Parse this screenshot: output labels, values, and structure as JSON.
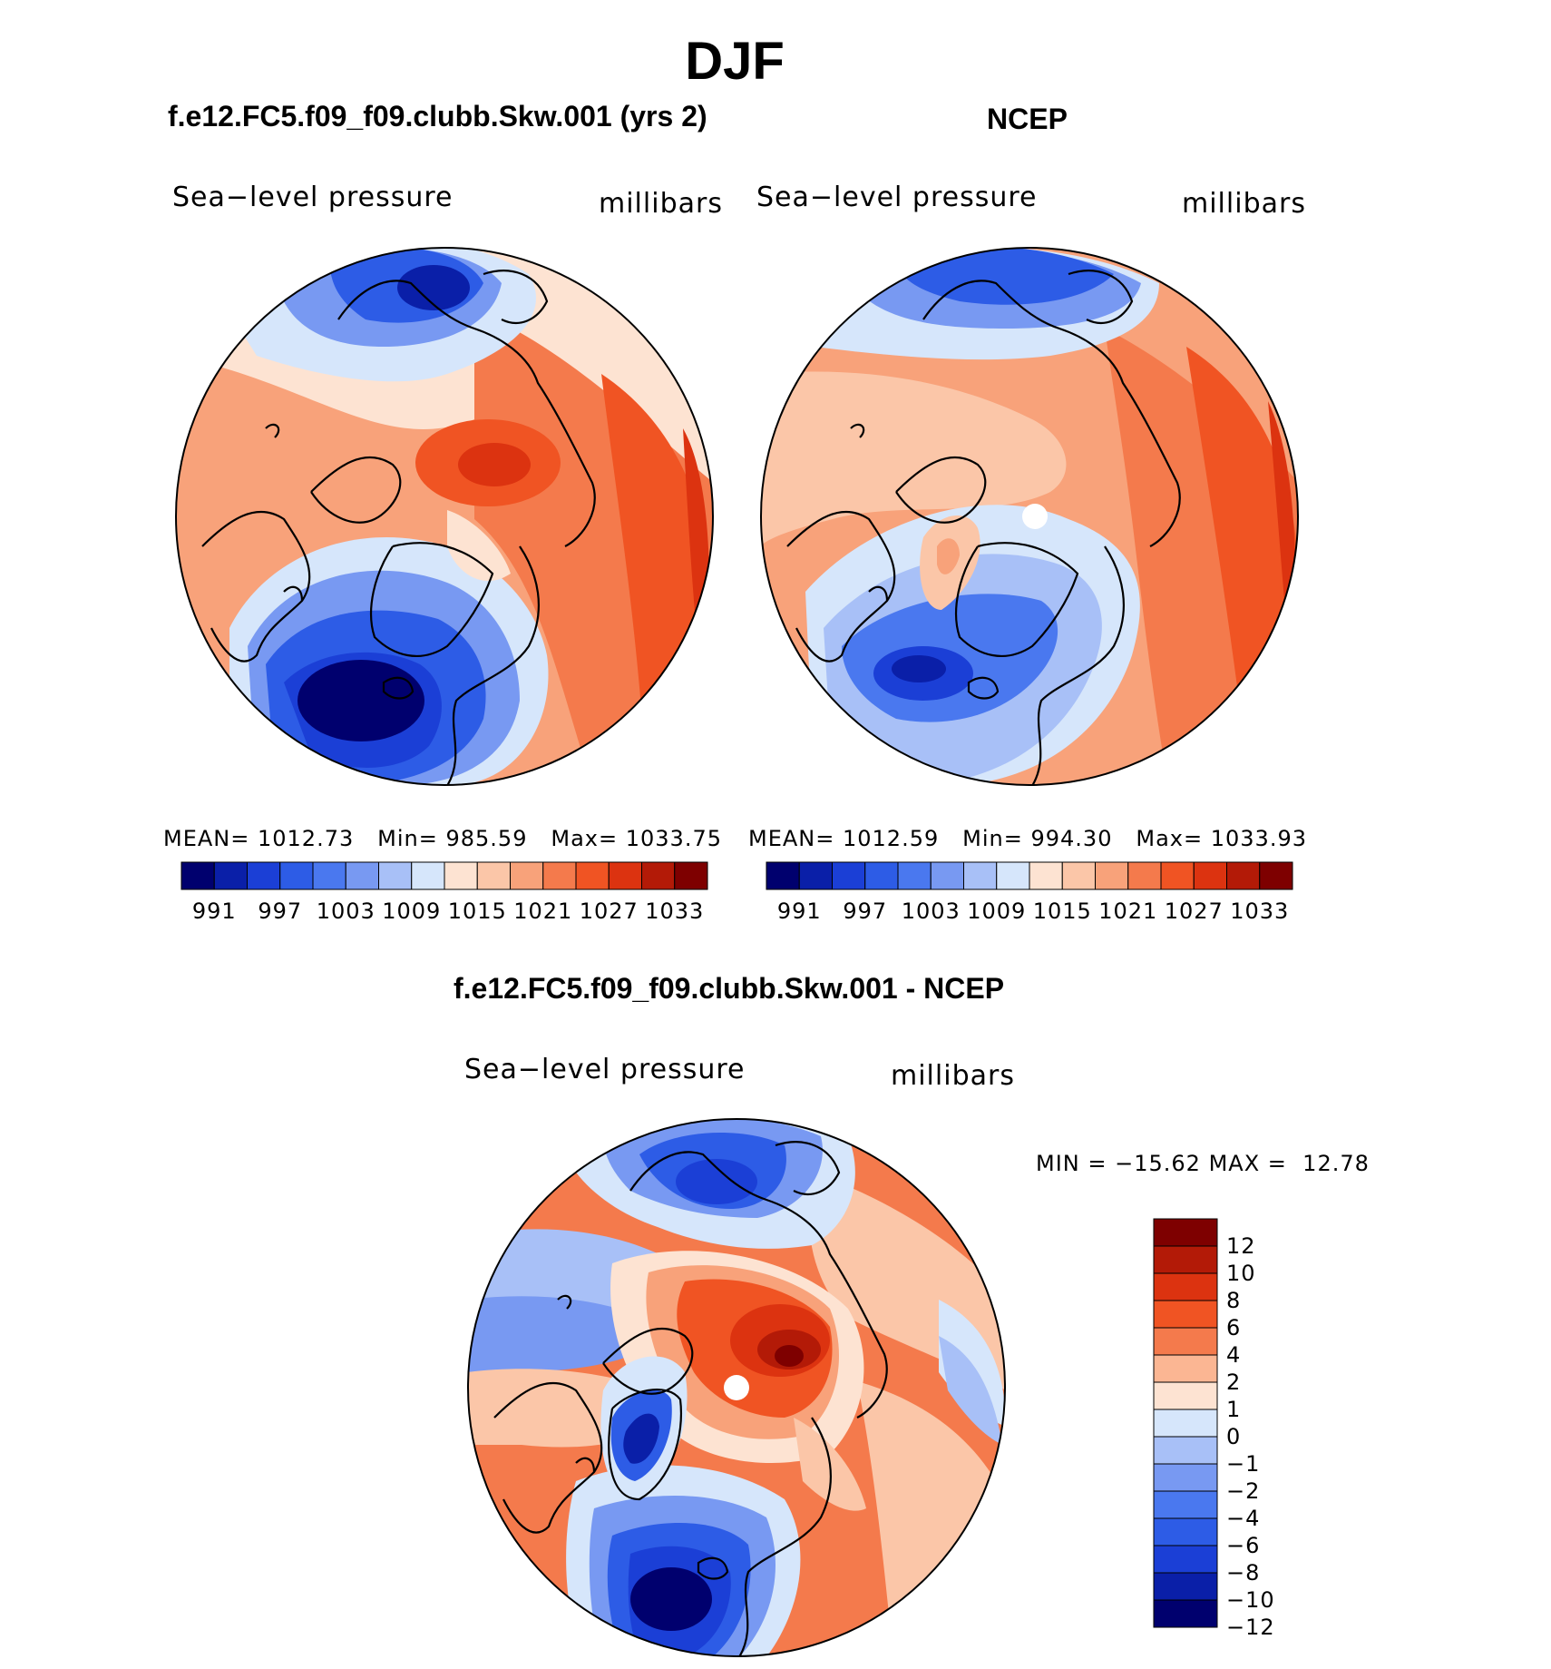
{
  "title": "DJF",
  "panels": [
    {
      "title": "f.e12.FC5.f09_f09.clubb.Skw.001 (yrs 2)",
      "left_label": "Sea−level pressure",
      "right_label": "millibars",
      "stats": {
        "mean_label": "MEAN=",
        "mean": "1012.73",
        "min_label": "Min=",
        "min": "985.59",
        "max_label": "Max=",
        "max": "1033.75"
      }
    },
    {
      "title": "NCEP",
      "left_label": "Sea−level pressure",
      "right_label": "millibars",
      "stats": {
        "mean_label": "MEAN=",
        "mean": "1012.59",
        "min_label": "Min=",
        "min": "994.30",
        "max_label": "Max=",
        "max": "1033.93"
      }
    },
    {
      "title": "f.e12.FC5.f09_f09.clubb.Skw.001 - NCEP",
      "left_label": "Sea−level pressure",
      "right_label": "millibars",
      "stats": {
        "min_label": "MIN =",
        "min": "−15.62",
        "max_label": "MAX =",
        "max": "12.78"
      }
    }
  ],
  "colorbar_field": {
    "colors": [
      "#00006e",
      "#0a1fa8",
      "#1b3fd6",
      "#2d5ce6",
      "#4a78ef",
      "#7899f2",
      "#a8c0f7",
      "#d6e6fb",
      "#fde3d2",
      "#fbc6a8",
      "#f8a27a",
      "#f47a4c",
      "#f05423",
      "#dc3310",
      "#b31a07",
      "#7e0000"
    ],
    "labels": [
      "991",
      "997",
      "1003",
      "1009",
      "1015",
      "1021",
      "1027",
      "1033"
    ],
    "levels": [
      988,
      991,
      994,
      997,
      1000,
      1003,
      1006,
      1009,
      1012,
      1015,
      1018,
      1021,
      1024,
      1027,
      1030,
      1033
    ]
  },
  "colorbar_diff": {
    "colors": [
      "#7e0000",
      "#b31a07",
      "#dc3310",
      "#f05423",
      "#f47a4c",
      "#fbb693",
      "#fde3d2",
      "#d6e6fb",
      "#a8c0f7",
      "#7899f2",
      "#4a78ef",
      "#2d5ce6",
      "#1b3fd6",
      "#0a1fa8",
      "#00006e"
    ],
    "labels": [
      "12",
      "10",
      "8",
      "6",
      "4",
      "2",
      "1",
      "0",
      "−1",
      "−2",
      "−4",
      "−6",
      "−8",
      "−10",
      "−12"
    ],
    "levels": [
      12,
      10,
      8,
      6,
      4,
      2,
      1,
      0,
      -1,
      -2,
      -4,
      -6,
      -8,
      -10,
      -12
    ]
  },
  "chart_data": [
    {
      "type": "heatmap",
      "title": "f.e12.FC5.f09_f09.clubb.Skw.001 (yrs 2)",
      "projection": "north polar stereographic",
      "variable": "Sea-level pressure",
      "units": "millibars",
      "season": "DJF",
      "mean": 1012.73,
      "min": 985.59,
      "max": 1033.75,
      "contour_levels": [
        991,
        997,
        1003,
        1009,
        1015,
        1021,
        1027,
        1033
      ]
    },
    {
      "type": "heatmap",
      "title": "NCEP",
      "projection": "north polar stereographic",
      "variable": "Sea-level pressure",
      "units": "millibars",
      "season": "DJF",
      "mean": 1012.59,
      "min": 994.3,
      "max": 1033.93,
      "contour_levels": [
        991,
        997,
        1003,
        1009,
        1015,
        1021,
        1027,
        1033
      ]
    },
    {
      "type": "heatmap",
      "title": "f.e12.FC5.f09_f09.clubb.Skw.001 - NCEP",
      "projection": "north polar stereographic",
      "variable": "Sea-level pressure",
      "units": "millibars",
      "season": "DJF",
      "min": -15.62,
      "max": 12.78,
      "contour_levels": [
        -12,
        -10,
        -8,
        -6,
        -4,
        -2,
        -1,
        0,
        1,
        2,
        4,
        6,
        8,
        10,
        12
      ]
    }
  ]
}
